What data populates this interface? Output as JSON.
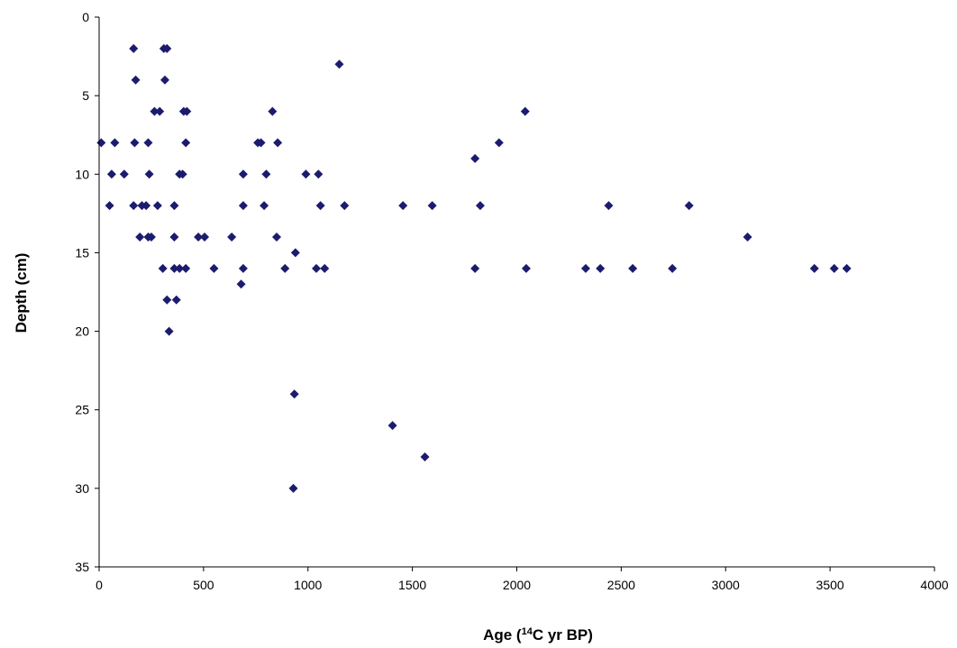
{
  "chart_data": {
    "type": "scatter",
    "title": "",
    "xlabel_parts": [
      "Age (",
      "14",
      "C yr BP)"
    ],
    "ylabel": "Depth (cm)",
    "xlim": [
      0,
      4000
    ],
    "ylim": [
      0,
      35
    ],
    "y_inverted": true,
    "x_ticks": [
      "0",
      "500",
      "1000",
      "1500",
      "2000",
      "2500",
      "3000",
      "3500",
      "4000"
    ],
    "y_ticks": [
      "0",
      "5",
      "10",
      "15",
      "20",
      "25",
      "30",
      "35"
    ],
    "grid": false,
    "legend": "none",
    "marker": "diamond",
    "marker_color": "#1c1c6e",
    "points": [
      {
        "x": 165,
        "y": 2
      },
      {
        "x": 310,
        "y": 2
      },
      {
        "x": 325,
        "y": 2
      },
      {
        "x": 1150,
        "y": 3
      },
      {
        "x": 175,
        "y": 4
      },
      {
        "x": 315,
        "y": 4
      },
      {
        "x": 265,
        "y": 6
      },
      {
        "x": 290,
        "y": 6
      },
      {
        "x": 405,
        "y": 6
      },
      {
        "x": 420,
        "y": 6
      },
      {
        "x": 830,
        "y": 6
      },
      {
        "x": 2040,
        "y": 6
      },
      {
        "x": 10,
        "y": 8
      },
      {
        "x": 75,
        "y": 8
      },
      {
        "x": 170,
        "y": 8
      },
      {
        "x": 235,
        "y": 8
      },
      {
        "x": 415,
        "y": 8
      },
      {
        "x": 760,
        "y": 8
      },
      {
        "x": 775,
        "y": 8
      },
      {
        "x": 855,
        "y": 8
      },
      {
        "x": 1915,
        "y": 8
      },
      {
        "x": 1800,
        "y": 9
      },
      {
        "x": 60,
        "y": 10
      },
      {
        "x": 120,
        "y": 10
      },
      {
        "x": 240,
        "y": 10
      },
      {
        "x": 385,
        "y": 10
      },
      {
        "x": 400,
        "y": 10
      },
      {
        "x": 690,
        "y": 10
      },
      {
        "x": 800,
        "y": 10
      },
      {
        "x": 990,
        "y": 10
      },
      {
        "x": 1050,
        "y": 10
      },
      {
        "x": 50,
        "y": 12
      },
      {
        "x": 165,
        "y": 12
      },
      {
        "x": 205,
        "y": 12
      },
      {
        "x": 225,
        "y": 12
      },
      {
        "x": 280,
        "y": 12
      },
      {
        "x": 360,
        "y": 12
      },
      {
        "x": 690,
        "y": 12
      },
      {
        "x": 790,
        "y": 12
      },
      {
        "x": 1060,
        "y": 12
      },
      {
        "x": 1175,
        "y": 12
      },
      {
        "x": 1455,
        "y": 12
      },
      {
        "x": 1595,
        "y": 12
      },
      {
        "x": 1825,
        "y": 12
      },
      {
        "x": 2440,
        "y": 12
      },
      {
        "x": 2825,
        "y": 12
      },
      {
        "x": 195,
        "y": 14
      },
      {
        "x": 235,
        "y": 14
      },
      {
        "x": 250,
        "y": 14
      },
      {
        "x": 360,
        "y": 14
      },
      {
        "x": 475,
        "y": 14
      },
      {
        "x": 505,
        "y": 14
      },
      {
        "x": 635,
        "y": 14
      },
      {
        "x": 850,
        "y": 14
      },
      {
        "x": 3105,
        "y": 14
      },
      {
        "x": 940,
        "y": 15
      },
      {
        "x": 305,
        "y": 16
      },
      {
        "x": 360,
        "y": 16
      },
      {
        "x": 385,
        "y": 16
      },
      {
        "x": 415,
        "y": 16
      },
      {
        "x": 550,
        "y": 16
      },
      {
        "x": 690,
        "y": 16
      },
      {
        "x": 890,
        "y": 16
      },
      {
        "x": 1040,
        "y": 16
      },
      {
        "x": 1080,
        "y": 16
      },
      {
        "x": 1800,
        "y": 16
      },
      {
        "x": 2045,
        "y": 16
      },
      {
        "x": 2330,
        "y": 16
      },
      {
        "x": 2400,
        "y": 16
      },
      {
        "x": 2555,
        "y": 16
      },
      {
        "x": 2745,
        "y": 16
      },
      {
        "x": 3425,
        "y": 16
      },
      {
        "x": 3520,
        "y": 16
      },
      {
        "x": 3580,
        "y": 16
      },
      {
        "x": 680,
        "y": 17
      },
      {
        "x": 325,
        "y": 18
      },
      {
        "x": 370,
        "y": 18
      },
      {
        "x": 335,
        "y": 20
      },
      {
        "x": 935,
        "y": 24
      },
      {
        "x": 1405,
        "y": 26
      },
      {
        "x": 1560,
        "y": 28
      },
      {
        "x": 930,
        "y": 30
      }
    ]
  }
}
